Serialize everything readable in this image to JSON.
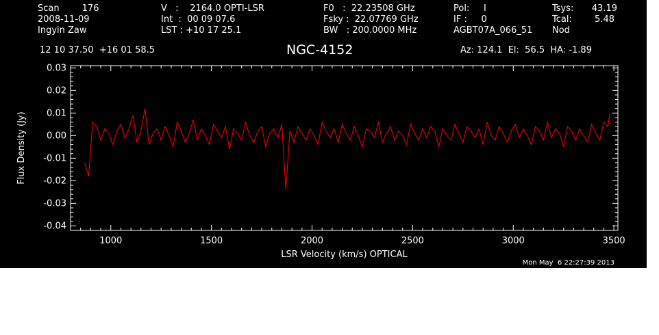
{
  "header": {
    "col1": [
      "Scan        176",
      "2008-11-09",
      "Ingyin Zaw"
    ],
    "col2": [
      "V   :    2164.0 OPTI-LSR",
      "Int  :  00 09 07.6",
      "LST : +10 17 25.1"
    ],
    "col3": [
      "F0   :  22.23508 GHz",
      "Fsky :  22.07769 GHz",
      "BW   : 200.0000 MHz"
    ],
    "col4": [
      "Pol:     I",
      "IF :     0",
      "AGBT07A_066_51"
    ],
    "col5": [
      "Tsys:",
      "Tcal:",
      "Nod"
    ],
    "col5_values": [
      "43.19",
      "5.48",
      ""
    ],
    "coords": "12 10 37.50  +16 01 58.5",
    "source": "NGC-4152",
    "azelha": "Az: 124.1  El:  56.5  HA: -1.89",
    "timestamp": "Mon May  6 22:27:39 2013"
  },
  "colors": {
    "background": "#000000",
    "foreground": "#ffffff",
    "series": "#ff0000"
  },
  "chart_data": {
    "type": "line",
    "xlabel": "LSR Velocity (km/s) OPTICAL",
    "ylabel": "Flux Density (Jy)",
    "xlim": [
      800,
      3520
    ],
    "ylim": [
      -0.042,
      0.031
    ],
    "x_ticks": [
      1000,
      1500,
      2000,
      2500,
      3000,
      3500
    ],
    "x_tick_labels": [
      "1000",
      "1500",
      "2000",
      "2500",
      "3000",
      "3500"
    ],
    "y_ticks": [
      0.03,
      0.02,
      0.01,
      0.0,
      -0.01,
      -0.02,
      -0.03,
      -0.04
    ],
    "y_tick_labels": [
      "0.03",
      "0.02",
      "0.01",
      "0.00",
      "-0.01",
      "-0.02",
      "-0.03",
      "-0.04"
    ],
    "grid": false,
    "series": [
      {
        "x_range": [
          870,
          3480
        ],
        "x_step": 20,
        "values": [
          -0.012,
          -0.018,
          0.006,
          0.004,
          -0.002,
          0.003,
          0.001,
          -0.004,
          0.002,
          0.005,
          -0.001,
          0.003,
          0.009,
          -0.003,
          0.002,
          0.012,
          -0.004,
          0.001,
          0.003,
          -0.002,
          0.004,
          0.0,
          -0.005,
          0.006,
          0.002,
          -0.003,
          0.001,
          0.007,
          -0.002,
          0.003,
          0.0,
          -0.004,
          0.005,
          0.002,
          -0.001,
          0.004,
          -0.006,
          0.003,
          0.001,
          -0.002,
          0.006,
          0.0,
          -0.003,
          0.002,
          0.004,
          -0.005,
          0.001,
          0.003,
          -0.001,
          0.005,
          -0.024,
          0.002,
          -0.003,
          0.004,
          0.001,
          -0.002,
          0.003,
          0.0,
          -0.004,
          0.006,
          0.002,
          -0.001,
          0.003,
          -0.003,
          0.005,
          0.001,
          -0.002,
          0.004,
          0.0,
          -0.005,
          0.003,
          0.002,
          -0.001,
          0.006,
          -0.003,
          0.001,
          0.004,
          -0.002,
          0.002,
          0.0,
          -0.004,
          0.005,
          0.001,
          -0.002,
          0.003,
          -0.001,
          0.004,
          0.002,
          -0.005,
          0.003,
          0.0,
          -0.002,
          0.005,
          0.001,
          -0.003,
          0.004,
          0.002,
          -0.001,
          0.003,
          -0.004,
          0.006,
          0.0,
          -0.002,
          0.004,
          0.001,
          -0.003,
          0.002,
          0.005,
          -0.001,
          0.003,
          0.0,
          -0.004,
          0.004,
          0.002,
          -0.002,
          0.006,
          -0.001,
          0.003,
          0.001,
          -0.005,
          0.004,
          0.002,
          -0.002,
          0.003,
          0.0,
          -0.003,
          0.005,
          0.001,
          -0.002,
          0.006,
          0.004,
          0.01
        ]
      }
    ]
  }
}
